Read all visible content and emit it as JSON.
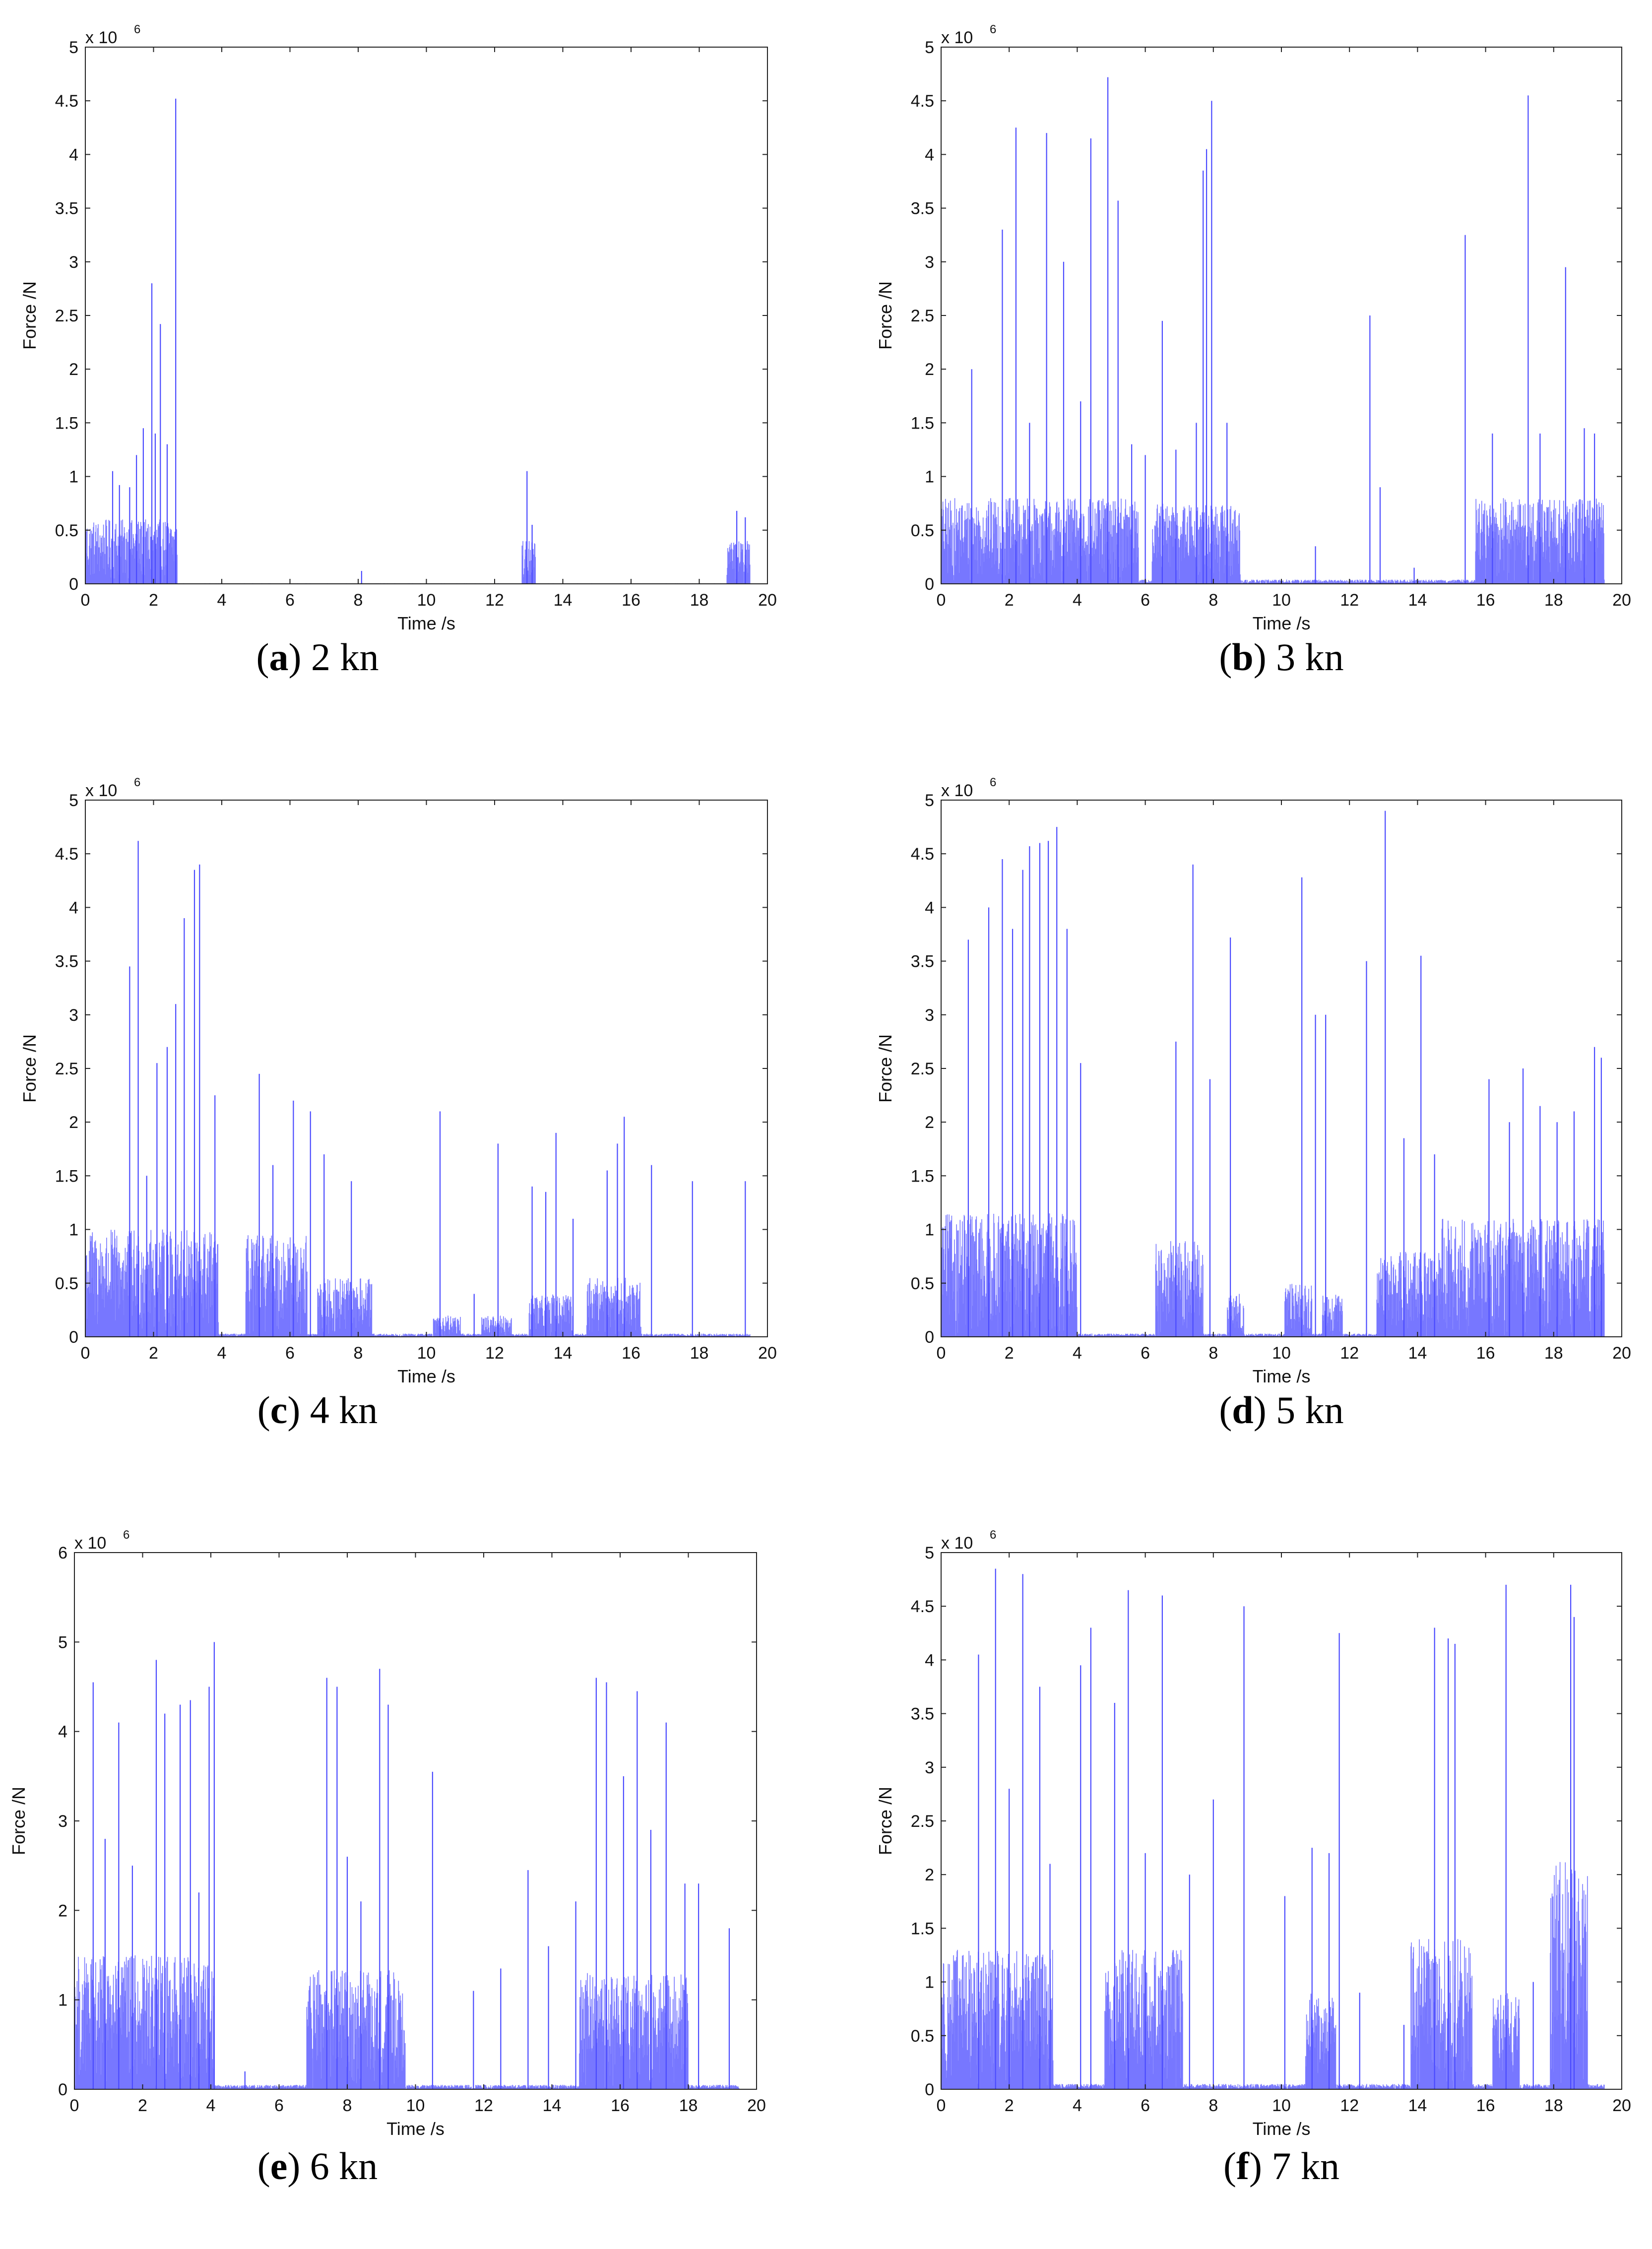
{
  "colors": {
    "series": "#4a4aff",
    "axis": "#222222",
    "background": "#ffffff"
  },
  "chart_data": [
    {
      "type": "line",
      "panel": "a",
      "caption_letter": "a",
      "caption_text": "2 kn",
      "xlabel": "Time /s",
      "ylabel": "Force /N",
      "scale_text": "x 10",
      "scale_exp": "6",
      "xlim": [
        0,
        20
      ],
      "ylim": [
        0,
        5
      ],
      "xticks": [
        0,
        2,
        4,
        6,
        8,
        10,
        12,
        14,
        16,
        18,
        20
      ],
      "yticks": [
        0,
        0.5,
        1,
        1.5,
        2,
        2.5,
        3,
        3.5,
        4,
        4.5,
        5
      ],
      "ytick_labels": [
        "0",
        "0.5",
        "1",
        "1.5",
        "2",
        "2.5",
        "3",
        "3.5",
        "4",
        "4.5",
        "5"
      ],
      "time_end": 19.5,
      "active_intervals": [
        [
          0,
          2.7,
          0.6
        ],
        [
          12.8,
          13.2,
          0.4
        ],
        [
          18.8,
          19.5,
          0.4
        ]
      ],
      "background_level": 0.005,
      "spikes": [
        [
          1.7,
          1.45
        ],
        [
          1.95,
          2.8
        ],
        [
          2.05,
          1.4
        ],
        [
          2.2,
          2.42
        ],
        [
          2.4,
          1.3
        ],
        [
          2.65,
          4.52
        ],
        [
          0.8,
          1.05
        ],
        [
          1.0,
          0.92
        ],
        [
          1.3,
          0.9
        ],
        [
          1.5,
          1.2
        ],
        [
          8.1,
          0.12
        ],
        [
          12.95,
          1.05
        ],
        [
          13.1,
          0.55
        ],
        [
          19.1,
          0.68
        ],
        [
          19.35,
          0.62
        ]
      ]
    },
    {
      "type": "line",
      "panel": "b",
      "caption_letter": "b",
      "caption_text": "3 kn",
      "xlabel": "Time /s",
      "ylabel": "Force /N",
      "scale_text": "x 10",
      "scale_exp": "6",
      "xlim": [
        0,
        20
      ],
      "ylim": [
        0,
        5
      ],
      "xticks": [
        0,
        2,
        4,
        6,
        8,
        10,
        12,
        14,
        16,
        18,
        20
      ],
      "yticks": [
        0,
        0.5,
        1,
        1.5,
        2,
        2.5,
        3,
        3.5,
        4,
        4.5,
        5
      ],
      "ytick_labels": [
        "0",
        "0.5",
        "1",
        "1.5",
        "2",
        "2.5",
        "3",
        "3.5",
        "4",
        "4.5",
        "5"
      ],
      "time_end": 19.5,
      "active_intervals": [
        [
          0,
          5.8,
          0.8
        ],
        [
          6.2,
          8.8,
          0.75
        ],
        [
          15.7,
          19.5,
          0.8
        ]
      ],
      "background_level": 0.04,
      "spikes": [
        [
          0.9,
          2.0
        ],
        [
          1.8,
          3.3
        ],
        [
          2.2,
          4.25
        ],
        [
          2.6,
          1.5
        ],
        [
          3.1,
          4.2
        ],
        [
          3.6,
          3.0
        ],
        [
          4.1,
          1.7
        ],
        [
          4.4,
          4.15
        ],
        [
          4.9,
          4.72
        ],
        [
          5.2,
          3.57
        ],
        [
          5.6,
          1.3
        ],
        [
          6.0,
          1.2
        ],
        [
          6.5,
          2.45
        ],
        [
          6.9,
          1.25
        ],
        [
          7.5,
          1.5
        ],
        [
          7.7,
          3.85
        ],
        [
          7.8,
          4.05
        ],
        [
          7.95,
          4.5
        ],
        [
          8.4,
          1.5
        ],
        [
          11.0,
          0.35
        ],
        [
          12.6,
          2.5
        ],
        [
          12.9,
          0.9
        ],
        [
          13.9,
          0.15
        ],
        [
          15.4,
          3.25
        ],
        [
          16.2,
          1.4
        ],
        [
          17.25,
          4.55
        ],
        [
          17.6,
          1.4
        ],
        [
          18.35,
          2.95
        ],
        [
          18.9,
          1.45
        ],
        [
          19.2,
          1.4
        ]
      ]
    },
    {
      "type": "line",
      "panel": "c",
      "caption_letter": "c",
      "caption_text": "4 kn",
      "xlabel": "Time /s",
      "ylabel": "Force /N",
      "scale_text": "x 10",
      "scale_exp": "6",
      "xlim": [
        0,
        20
      ],
      "ylim": [
        0,
        5
      ],
      "xticks": [
        0,
        2,
        4,
        6,
        8,
        10,
        12,
        14,
        16,
        18,
        20
      ],
      "yticks": [
        0,
        0.5,
        1,
        1.5,
        2,
        2.5,
        3,
        3.5,
        4,
        4.5,
        5
      ],
      "ytick_labels": [
        "0",
        "0.5",
        "1",
        "1.5",
        "2",
        "2.5",
        "3",
        "3.5",
        "4",
        "4.5",
        "5"
      ],
      "time_end": 19.5,
      "active_intervals": [
        [
          0,
          3.9,
          1.0
        ],
        [
          4.7,
          6.5,
          0.95
        ],
        [
          6.8,
          8.4,
          0.55
        ],
        [
          10.2,
          11.0,
          0.2
        ],
        [
          11.6,
          12.5,
          0.2
        ],
        [
          13.0,
          14.3,
          0.4
        ],
        [
          14.7,
          16.3,
          0.55
        ]
      ],
      "background_level": 0.03,
      "spikes": [
        [
          1.3,
          3.45
        ],
        [
          1.55,
          4.62
        ],
        [
          1.8,
          1.5
        ],
        [
          2.1,
          2.55
        ],
        [
          2.4,
          2.7
        ],
        [
          2.65,
          3.1
        ],
        [
          2.9,
          3.9
        ],
        [
          3.2,
          4.35
        ],
        [
          3.35,
          4.4
        ],
        [
          3.8,
          2.25
        ],
        [
          5.1,
          2.45
        ],
        [
          5.5,
          1.6
        ],
        [
          6.1,
          2.2
        ],
        [
          6.6,
          2.1
        ],
        [
          7.0,
          1.7
        ],
        [
          7.8,
          1.45
        ],
        [
          10.4,
          2.1
        ],
        [
          11.4,
          0.4
        ],
        [
          12.1,
          1.8
        ],
        [
          13.1,
          1.4
        ],
        [
          13.5,
          1.35
        ],
        [
          13.8,
          1.9
        ],
        [
          14.3,
          1.1
        ],
        [
          15.3,
          1.55
        ],
        [
          15.6,
          1.8
        ],
        [
          15.8,
          2.05
        ],
        [
          16.6,
          1.6
        ],
        [
          17.8,
          1.45
        ],
        [
          19.35,
          1.45
        ]
      ]
    },
    {
      "type": "line",
      "panel": "d",
      "caption_letter": "d",
      "caption_text": "5 kn",
      "xlabel": "Time /s",
      "ylabel": "Force /N",
      "scale_text": "x 10",
      "scale_exp": "6",
      "xlim": [
        0,
        20
      ],
      "ylim": [
        0,
        5
      ],
      "xticks": [
        0,
        2,
        4,
        6,
        8,
        10,
        12,
        14,
        16,
        18,
        20
      ],
      "yticks": [
        0,
        0.5,
        1,
        1.5,
        2,
        2.5,
        3,
        3.5,
        4,
        4.5,
        5
      ],
      "ytick_labels": [
        "0",
        "0.5",
        "1",
        "1.5",
        "2",
        "2.5",
        "3",
        "3.5",
        "4",
        "4.5",
        "5"
      ],
      "time_end": 19.5,
      "active_intervals": [
        [
          0,
          4.0,
          1.15
        ],
        [
          6.3,
          7.7,
          0.9
        ],
        [
          8.4,
          8.9,
          0.4
        ],
        [
          10.1,
          10.9,
          0.5
        ],
        [
          11.2,
          11.8,
          0.4
        ],
        [
          12.8,
          14.6,
          0.8
        ],
        [
          14.6,
          19.5,
          1.1
        ]
      ],
      "background_level": 0.03,
      "spikes": [
        [
          0.8,
          3.7
        ],
        [
          1.4,
          4.0
        ],
        [
          1.8,
          4.45
        ],
        [
          2.1,
          3.8
        ],
        [
          2.4,
          4.35
        ],
        [
          2.6,
          4.57
        ],
        [
          2.9,
          4.6
        ],
        [
          3.15,
          4.62
        ],
        [
          3.4,
          4.75
        ],
        [
          3.7,
          3.8
        ],
        [
          4.1,
          2.55
        ],
        [
          6.9,
          2.75
        ],
        [
          7.4,
          4.4
        ],
        [
          7.9,
          2.4
        ],
        [
          8.5,
          3.72
        ],
        [
          10.6,
          4.28
        ],
        [
          11.0,
          3.0
        ],
        [
          11.3,
          3.0
        ],
        [
          12.5,
          3.5
        ],
        [
          13.05,
          4.9
        ],
        [
          13.6,
          1.85
        ],
        [
          14.1,
          3.55
        ],
        [
          14.5,
          1.7
        ],
        [
          16.1,
          2.4
        ],
        [
          16.7,
          2.0
        ],
        [
          17.1,
          2.5
        ],
        [
          17.6,
          2.15
        ],
        [
          18.1,
          2.0
        ],
        [
          18.6,
          2.1
        ],
        [
          19.2,
          2.7
        ],
        [
          19.4,
          2.6
        ]
      ]
    },
    {
      "type": "line",
      "panel": "e",
      "caption_letter": "e",
      "caption_text": "6 kn",
      "xlabel": "Time /s",
      "ylabel": "Force /N",
      "scale_text": "x 10",
      "scale_exp": "6",
      "xlim": [
        0,
        20
      ],
      "ylim": [
        0,
        6
      ],
      "xticks": [
        0,
        2,
        4,
        6,
        8,
        10,
        12,
        14,
        16,
        18,
        20
      ],
      "yticks": [
        0,
        1,
        2,
        3,
        4,
        5,
        6
      ],
      "ytick_labels": [
        "0",
        "1",
        "2",
        "3",
        "4",
        "5",
        "6"
      ],
      "time_end": 19.5,
      "active_intervals": [
        [
          0,
          4.1,
          1.5
        ],
        [
          6.8,
          9.7,
          1.35
        ],
        [
          14.8,
          18.0,
          1.3
        ]
      ],
      "background_level": 0.05,
      "spikes": [
        [
          0.55,
          4.55
        ],
        [
          0.9,
          2.8
        ],
        [
          1.3,
          4.1
        ],
        [
          1.7,
          2.5
        ],
        [
          2.4,
          4.8
        ],
        [
          2.65,
          4.2
        ],
        [
          3.1,
          4.3
        ],
        [
          3.4,
          4.35
        ],
        [
          3.65,
          2.2
        ],
        [
          3.95,
          4.5
        ],
        [
          4.1,
          5.0
        ],
        [
          5.0,
          0.2
        ],
        [
          7.4,
          4.6
        ],
        [
          7.7,
          4.5
        ],
        [
          8.0,
          2.6
        ],
        [
          8.4,
          2.1
        ],
        [
          8.95,
          4.7
        ],
        [
          9.2,
          4.3
        ],
        [
          10.5,
          3.55
        ],
        [
          11.7,
          1.1
        ],
        [
          12.5,
          1.35
        ],
        [
          13.3,
          2.45
        ],
        [
          13.9,
          1.6
        ],
        [
          14.7,
          2.1
        ],
        [
          15.3,
          4.6
        ],
        [
          15.6,
          4.55
        ],
        [
          16.1,
          3.5
        ],
        [
          16.5,
          4.45
        ],
        [
          16.9,
          2.9
        ],
        [
          17.35,
          4.1
        ],
        [
          17.9,
          2.3
        ],
        [
          18.3,
          2.3
        ],
        [
          19.2,
          1.8
        ]
      ]
    },
    {
      "type": "line",
      "panel": "f",
      "caption_letter": "f",
      "caption_text": "7 kn",
      "xlabel": "Time /s",
      "ylabel": "Force /N",
      "scale_text": "x 10",
      "scale_exp": "6",
      "xlim": [
        0,
        20
      ],
      "ylim": [
        0,
        5
      ],
      "xticks": [
        0,
        2,
        4,
        6,
        8,
        10,
        12,
        14,
        16,
        18,
        20
      ],
      "yticks": [
        0,
        0.5,
        1,
        1.5,
        2,
        2.5,
        3,
        3.5,
        4,
        4.5,
        5
      ],
      "ytick_labels": [
        "0",
        "0.5",
        "1",
        "1.5",
        "2",
        "2.5",
        "3",
        "3.5",
        "4",
        "4.5",
        "5"
      ],
      "time_end": 19.5,
      "active_intervals": [
        [
          0,
          3.3,
          1.3
        ],
        [
          4.8,
          7.1,
          1.3
        ],
        [
          10.7,
          11.6,
          0.9
        ],
        [
          13.8,
          15.6,
          1.4
        ],
        [
          16.2,
          17.0,
          0.9
        ],
        [
          17.9,
          19.0,
          2.2
        ]
      ],
      "background_level": 0.05,
      "spikes": [
        [
          1.1,
          4.05
        ],
        [
          1.6,
          4.85
        ],
        [
          2.0,
          2.8
        ],
        [
          2.4,
          4.8
        ],
        [
          2.9,
          3.75
        ],
        [
          3.2,
          2.1
        ],
        [
          4.1,
          3.95
        ],
        [
          4.4,
          4.3
        ],
        [
          5.1,
          3.6
        ],
        [
          5.5,
          4.65
        ],
        [
          6.0,
          2.2
        ],
        [
          6.5,
          4.6
        ],
        [
          7.3,
          2.0
        ],
        [
          8.0,
          2.7
        ],
        [
          8.9,
          4.5
        ],
        [
          10.1,
          1.8
        ],
        [
          10.9,
          2.25
        ],
        [
          11.4,
          2.2
        ],
        [
          11.7,
          4.25
        ],
        [
          12.3,
          0.9
        ],
        [
          13.6,
          0.6
        ],
        [
          14.5,
          4.3
        ],
        [
          14.9,
          4.2
        ],
        [
          15.1,
          4.15
        ],
        [
          16.6,
          4.7
        ],
        [
          17.4,
          1.0
        ],
        [
          18.5,
          4.7
        ],
        [
          18.6,
          4.4
        ]
      ]
    }
  ]
}
